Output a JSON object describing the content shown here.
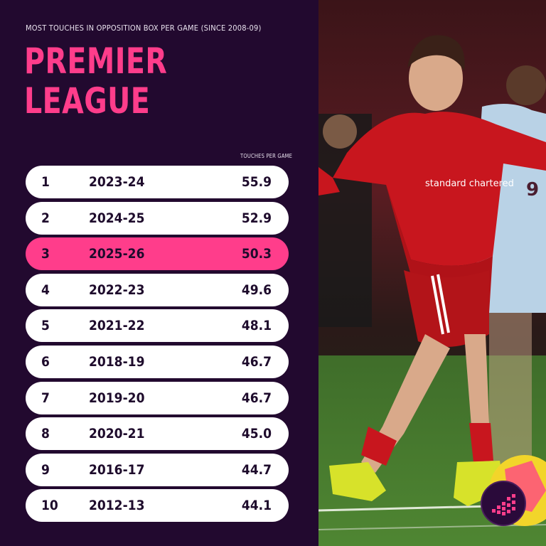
{
  "subtitle": "MOST TOUCHES IN OPPOSITION BOX PER GAME (SINCE 2008-09)",
  "title_line1": "PREMIER",
  "title_line2": "LEAGUE",
  "column_header": "TOUCHES PER GAME",
  "highlight_color": "#ff3d8b",
  "panel_color": "#22092f",
  "chart_data": {
    "type": "table",
    "title": "PREMIER LEAGUE",
    "subtitle": "MOST TOUCHES IN OPPOSITION BOX PER GAME (SINCE 2008-09)",
    "columns": [
      "",
      "",
      "TOUCHES PER GAME"
    ],
    "rows": [
      {
        "rank": "1",
        "season": "2023-24",
        "value": "55.9",
        "highlight": false
      },
      {
        "rank": "2",
        "season": "2024-25",
        "value": "52.9",
        "highlight": false
      },
      {
        "rank": "3",
        "season": "2025-26",
        "value": "50.3",
        "highlight": true
      },
      {
        "rank": "4",
        "season": "2022-23",
        "value": "49.6",
        "highlight": false
      },
      {
        "rank": "5",
        "season": "2021-22",
        "value": "48.1",
        "highlight": false
      },
      {
        "rank": "6",
        "season": "2018-19",
        "value": "46.7",
        "highlight": false
      },
      {
        "rank": "7",
        "season": "2019-20",
        "value": "46.7",
        "highlight": false
      },
      {
        "rank": "8",
        "season": "2020-21",
        "value": "45.0",
        "highlight": false
      },
      {
        "rank": "9",
        "season": "2016-17",
        "value": "44.7",
        "highlight": false
      },
      {
        "rank": "10",
        "season": "2012-13",
        "value": "44.1",
        "highlight": false
      }
    ]
  },
  "photo": {
    "shirt_sponsor": "standard chartered",
    "jersey_number": "9"
  },
  "logo_icon": "bar-chart-logo-icon"
}
